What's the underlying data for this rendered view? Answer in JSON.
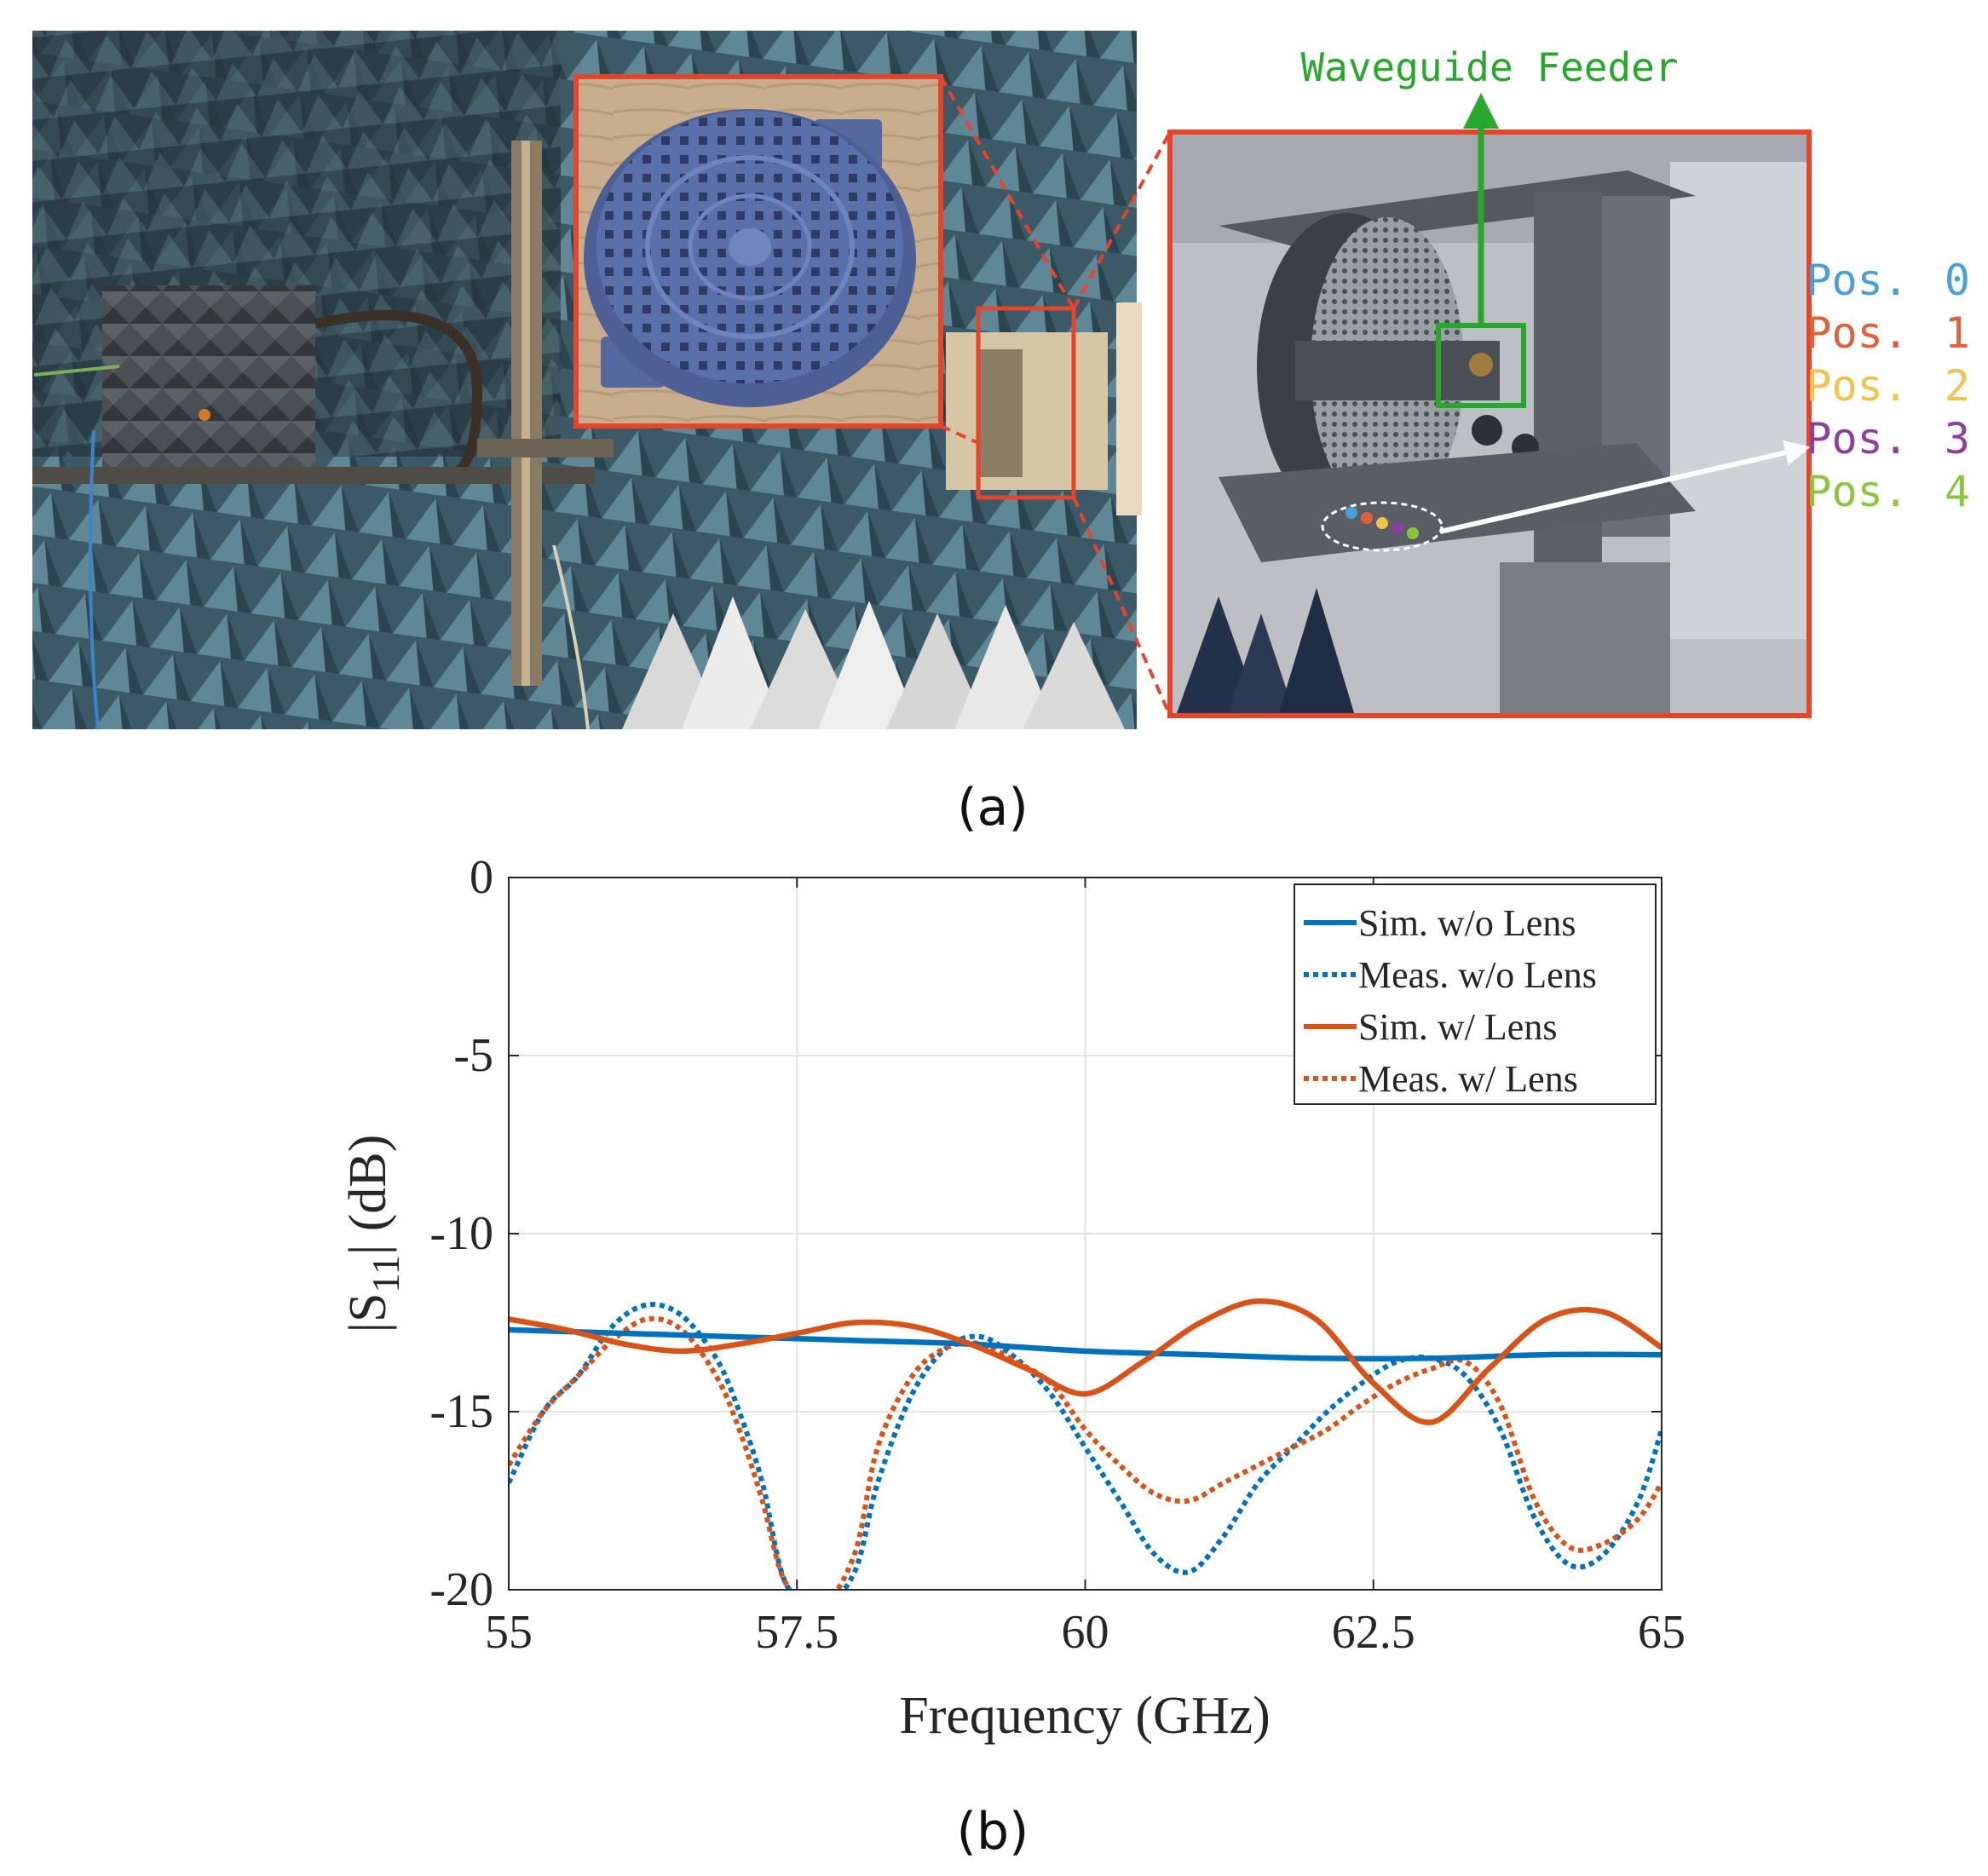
{
  "panel_a": {
    "label": "(a)",
    "feeder_label": "Waveguide Feeder",
    "positions": [
      {
        "label": "Pos.",
        "num": "0",
        "color": "#4a9fd8"
      },
      {
        "label": "Pos.",
        "num": "1",
        "color": "#e0603a"
      },
      {
        "label": "Pos.",
        "num": "2",
        "color": "#f2c14e"
      },
      {
        "label": "Pos.",
        "num": "3",
        "color": "#8e3f9e"
      },
      {
        "label": "Pos.",
        "num": "4",
        "color": "#8cc63f"
      }
    ],
    "colors": {
      "highlight_box": "#e8432b",
      "feeder": "#27a82d",
      "chamber": "#3f5f6d",
      "lens": "#5b6fa8"
    }
  },
  "panel_b": {
    "label": "(b)"
  },
  "chart_data": {
    "type": "line",
    "title": "",
    "xlabel": "Frequency (GHz)",
    "ylabel": "|S11| (dB)",
    "ylabel_main": "|S",
    "ylabel_sub": "11",
    "ylabel_end": "| (dB)",
    "xlim": [
      55,
      65
    ],
    "ylim": [
      -20,
      0
    ],
    "xticks": [
      55,
      57.5,
      60,
      62.5,
      65
    ],
    "xtick_labels": [
      "55",
      "57.5",
      "60",
      "62.5",
      "65"
    ],
    "yticks": [
      0,
      -5,
      -10,
      -15,
      -20
    ],
    "ytick_labels": [
      "0",
      "-5",
      "-10",
      "-15",
      "-20"
    ],
    "grid": true,
    "legend_position": "top-right",
    "series": [
      {
        "name": "Sim. w/o Lens",
        "color": "#0072bd",
        "style": "solid",
        "x": [
          55,
          56,
          57,
          58,
          59,
          60,
          61,
          62,
          63,
          64,
          65
        ],
        "y": [
          -12.7,
          -12.8,
          -12.9,
          -13.0,
          -13.1,
          -13.3,
          -13.4,
          -13.5,
          -13.5,
          -13.4,
          -13.4
        ]
      },
      {
        "name": "Meas. w/o Lens",
        "color": "#0072bd",
        "style": "dotted",
        "x": [
          55,
          55.3,
          55.6,
          55.9,
          56.2,
          56.5,
          56.8,
          57.0,
          57.2,
          57.4,
          57.7,
          58.0,
          58.2,
          58.5,
          58.8,
          59.1,
          59.4,
          59.7,
          60.0,
          60.3,
          60.6,
          60.9,
          61.2,
          61.5,
          61.8,
          62.1,
          62.4,
          62.7,
          63.0,
          63.3,
          63.6,
          63.9,
          64.2,
          64.5,
          64.8,
          65.0
        ],
        "y": [
          -17.0,
          -15.0,
          -14.0,
          -12.6,
          -12.0,
          -12.3,
          -13.5,
          -15.0,
          -17.0,
          -19.8,
          -20.5,
          -19.5,
          -17.0,
          -14.5,
          -13.2,
          -12.9,
          -13.5,
          -14.5,
          -16.0,
          -17.5,
          -19.0,
          -19.5,
          -18.5,
          -17.0,
          -16.0,
          -15.0,
          -14.2,
          -13.6,
          -13.5,
          -14.0,
          -15.5,
          -18.0,
          -19.3,
          -19.0,
          -17.5,
          -15.5
        ]
      },
      {
        "name": "Sim. w/ Lens",
        "color": "#d95319",
        "style": "solid",
        "x": [
          55,
          55.5,
          56,
          56.5,
          57,
          57.5,
          58,
          58.5,
          59,
          59.5,
          60,
          60.5,
          61,
          61.5,
          62,
          62.5,
          63,
          63.5,
          64,
          64.5,
          65
        ],
        "y": [
          -12.4,
          -12.7,
          -13.1,
          -13.3,
          -13.1,
          -12.8,
          -12.5,
          -12.6,
          -13.1,
          -13.8,
          -14.5,
          -13.6,
          -12.5,
          -11.9,
          -12.4,
          -14.2,
          -15.3,
          -13.8,
          -12.4,
          -12.2,
          -13.2
        ]
      },
      {
        "name": "Meas. w/ Lens",
        "color": "#d95319",
        "style": "dotted",
        "x": [
          55,
          55.3,
          55.6,
          55.9,
          56.2,
          56.5,
          56.8,
          57.0,
          57.2,
          57.4,
          57.7,
          58.0,
          58.2,
          58.5,
          58.8,
          59.1,
          59.4,
          59.7,
          60.0,
          60.3,
          60.6,
          60.9,
          61.2,
          61.5,
          61.8,
          62.1,
          62.4,
          62.7,
          63.0,
          63.3,
          63.6,
          63.9,
          64.2,
          64.5,
          64.8,
          65.0
        ],
        "y": [
          -16.5,
          -15.0,
          -14.0,
          -13.0,
          -12.4,
          -12.7,
          -14.0,
          -15.5,
          -17.5,
          -19.8,
          -20.5,
          -19.0,
          -16.0,
          -14.0,
          -13.2,
          -13.1,
          -13.6,
          -14.2,
          -15.5,
          -16.5,
          -17.3,
          -17.5,
          -17.0,
          -16.5,
          -16.0,
          -15.5,
          -14.8,
          -14.2,
          -13.8,
          -13.6,
          -14.8,
          -17.5,
          -18.8,
          -18.7,
          -18.0,
          -17.0
        ]
      }
    ]
  }
}
